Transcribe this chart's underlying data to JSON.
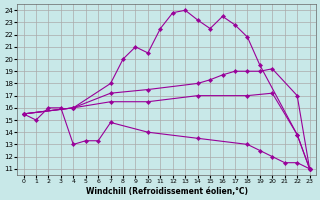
{
  "xlabel": "Windchill (Refroidissement éolien,°C)",
  "background_color": "#c8e8e8",
  "grid_color": "#aaaaaa",
  "line_color": "#990099",
  "x_ticks": [
    0,
    1,
    2,
    3,
    4,
    5,
    6,
    7,
    8,
    9,
    10,
    11,
    12,
    13,
    14,
    15,
    16,
    17,
    18,
    19,
    20,
    21,
    22,
    23
  ],
  "y_ticks": [
    11,
    12,
    13,
    14,
    15,
    16,
    17,
    18,
    19,
    20,
    21,
    22,
    23,
    24
  ],
  "ylim": [
    10.5,
    24.5
  ],
  "xlim": [
    -0.5,
    23.5
  ],
  "series": [
    {
      "x": [
        0,
        4,
        7,
        8,
        9,
        10,
        11,
        12,
        13,
        14,
        15,
        16,
        17,
        18,
        19,
        22,
        23
      ],
      "y": [
        15.5,
        16.0,
        18.0,
        20.0,
        21.0,
        20.5,
        22.5,
        23.8,
        24.0,
        23.2,
        22.5,
        23.5,
        22.8,
        21.8,
        19.5,
        13.8,
        11.0
      ]
    },
    {
      "x": [
        0,
        4,
        7,
        10,
        14,
        15,
        16,
        17,
        18,
        19,
        20,
        22,
        23
      ],
      "y": [
        15.5,
        16.0,
        17.2,
        17.5,
        18.0,
        18.3,
        18.7,
        19.0,
        19.0,
        19.0,
        19.2,
        17.0,
        11.0
      ]
    },
    {
      "x": [
        0,
        4,
        7,
        10,
        14,
        18,
        20,
        22,
        23
      ],
      "y": [
        15.5,
        16.0,
        16.5,
        16.5,
        17.0,
        17.0,
        17.2,
        13.8,
        11.0
      ]
    },
    {
      "x": [
        0,
        1,
        2,
        3,
        4,
        5,
        6,
        7,
        10,
        14,
        18,
        19,
        20,
        21,
        22,
        23
      ],
      "y": [
        15.5,
        15.0,
        16.0,
        16.0,
        13.0,
        13.3,
        13.3,
        14.8,
        14.0,
        13.5,
        13.0,
        12.5,
        12.0,
        11.5,
        11.5,
        11.0
      ]
    }
  ]
}
